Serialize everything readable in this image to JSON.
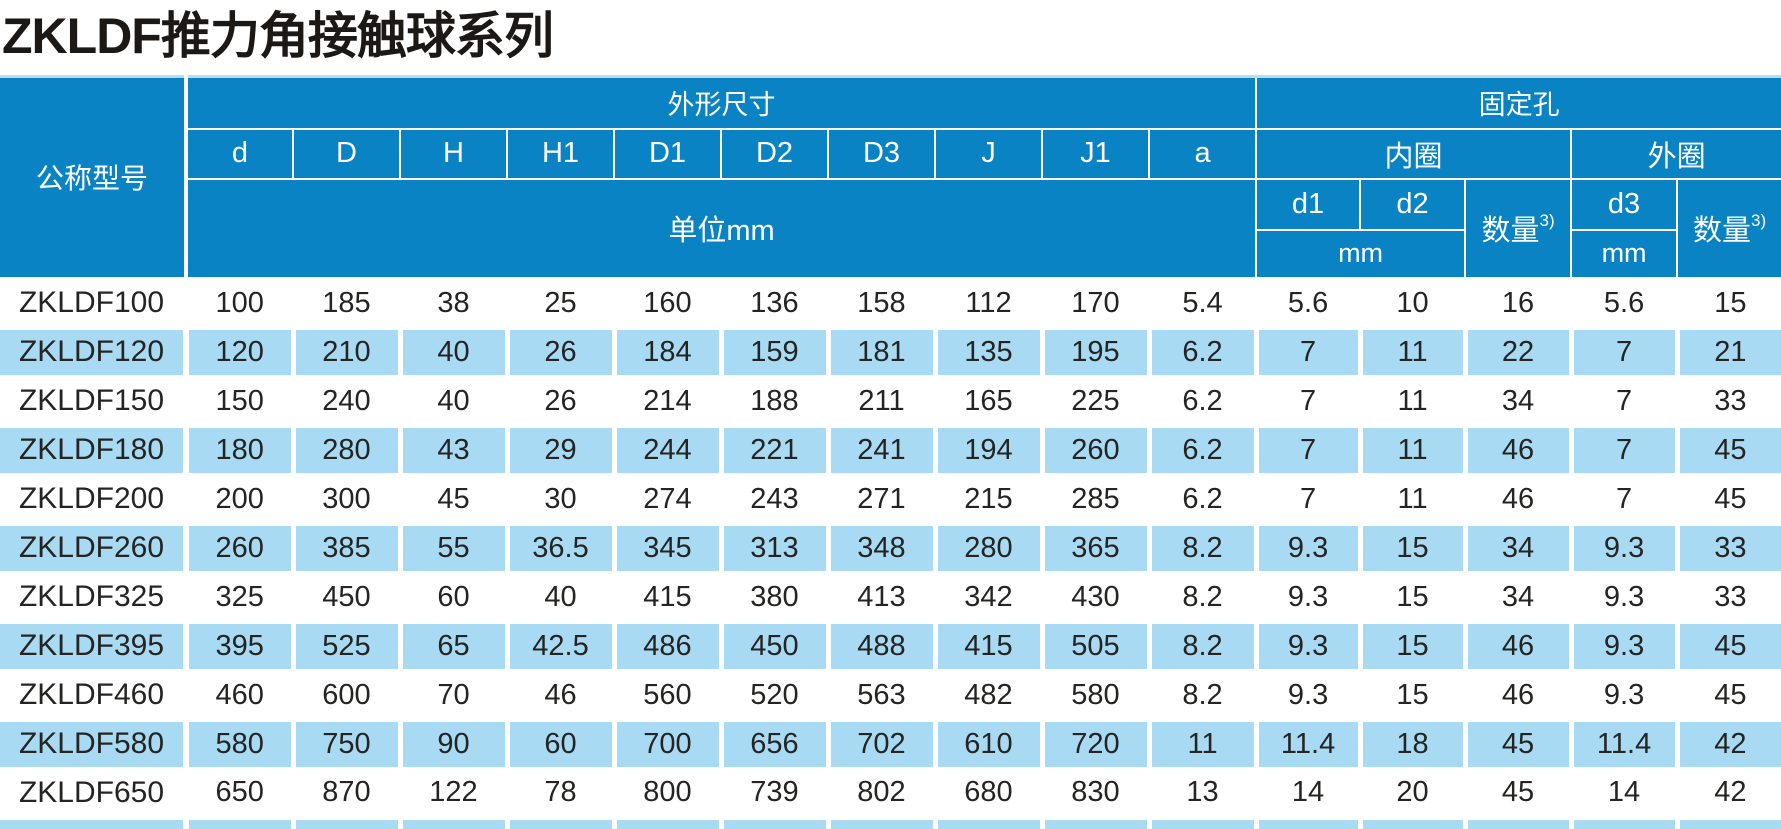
{
  "title": "ZKLDF推力角接触球系列",
  "colors": {
    "header_blue": "#0a83c5",
    "row_light_blue": "#a9daf3",
    "top_edge_light": "#b5ddf1",
    "text_dark": "#242422",
    "header_text": "#ffffff"
  },
  "table": {
    "model_header": "公称型号",
    "groups": {
      "dimensions": "外形尺寸",
      "fixed_holes": "固定孔"
    },
    "dim_columns": [
      "d",
      "D",
      "H",
      "H1",
      "D1",
      "D2",
      "D3",
      "J",
      "J1",
      "a"
    ],
    "dim_unit_label": "单位mm",
    "inner_ring_label": "内圈",
    "outer_ring_label": "外圈",
    "hole_columns": [
      "d1",
      "d2",
      "d3"
    ],
    "qty_label": "数量",
    "qty_sup": "3)",
    "mm_label": "mm",
    "rows": [
      {
        "model": "ZKLDF100",
        "values": [
          "100",
          "185",
          "38",
          "25",
          "160",
          "136",
          "158",
          "112",
          "170",
          "5.4",
          "5.6",
          "10",
          "16",
          "5.6",
          "15"
        ]
      },
      {
        "model": "ZKLDF120",
        "values": [
          "120",
          "210",
          "40",
          "26",
          "184",
          "159",
          "181",
          "135",
          "195",
          "6.2",
          "7",
          "11",
          "22",
          "7",
          "21"
        ]
      },
      {
        "model": "ZKLDF150",
        "values": [
          "150",
          "240",
          "40",
          "26",
          "214",
          "188",
          "211",
          "165",
          "225",
          "6.2",
          "7",
          "11",
          "34",
          "7",
          "33"
        ]
      },
      {
        "model": "ZKLDF180",
        "values": [
          "180",
          "280",
          "43",
          "29",
          "244",
          "221",
          "241",
          "194",
          "260",
          "6.2",
          "7",
          "11",
          "46",
          "7",
          "45"
        ]
      },
      {
        "model": "ZKLDF200",
        "values": [
          "200",
          "300",
          "45",
          "30",
          "274",
          "243",
          "271",
          "215",
          "285",
          "6.2",
          "7",
          "11",
          "46",
          "7",
          "45"
        ]
      },
      {
        "model": "ZKLDF260",
        "values": [
          "260",
          "385",
          "55",
          "36.5",
          "345",
          "313",
          "348",
          "280",
          "365",
          "8.2",
          "9.3",
          "15",
          "34",
          "9.3",
          "33"
        ]
      },
      {
        "model": "ZKLDF325",
        "values": [
          "325",
          "450",
          "60",
          "40",
          "415",
          "380",
          "413",
          "342",
          "430",
          "8.2",
          "9.3",
          "15",
          "34",
          "9.3",
          "33"
        ]
      },
      {
        "model": "ZKLDF395",
        "values": [
          "395",
          "525",
          "65",
          "42.5",
          "486",
          "450",
          "488",
          "415",
          "505",
          "8.2",
          "9.3",
          "15",
          "46",
          "9.3",
          "45"
        ]
      },
      {
        "model": "ZKLDF460",
        "values": [
          "460",
          "600",
          "70",
          "46",
          "560",
          "520",
          "563",
          "482",
          "580",
          "8.2",
          "9.3",
          "15",
          "46",
          "9.3",
          "45"
        ]
      },
      {
        "model": "ZKLDF580",
        "values": [
          "580",
          "750",
          "90",
          "60",
          "700",
          "656",
          "702",
          "610",
          "720",
          "11",
          "11.4",
          "18",
          "45",
          "11.4",
          "42"
        ]
      },
      {
        "model": "ZKLDF650",
        "values": [
          "650",
          "870",
          "122",
          "78",
          "800",
          "739",
          "802",
          "680",
          "830",
          "13",
          "14",
          "20",
          "45",
          "14",
          "42"
        ]
      }
    ]
  }
}
